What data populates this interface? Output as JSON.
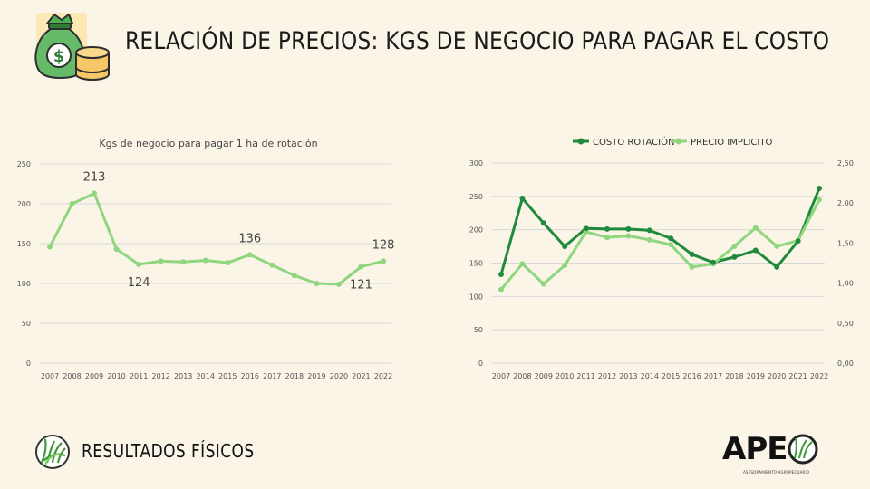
{
  "title": "RELACIÓN DE PRECIOS: KGS DE NEGOCIO PARA PAGAR EL COSTO",
  "footer": {
    "section": "RESULTADOS  FÍSICOS"
  },
  "brand": {
    "name": "APE",
    "subtitle": "ASESORAMIENTO AGROPECUARIO"
  },
  "colors": {
    "background": "#fbf5e8",
    "dark_green": "#1f8a3c",
    "light_green": "#8fd67e"
  },
  "chart_data": [
    {
      "type": "line",
      "title": "Kgs de negocio  para pagar 1 ha de rotación",
      "x": [
        "2007",
        "2008",
        "2009",
        "2010",
        "2011",
        "2012",
        "2013",
        "2014",
        "2015",
        "2016",
        "2017",
        "2018",
        "2019",
        "2020",
        "2021",
        "2022"
      ],
      "series": [
        {
          "name": "Kgs de negocio",
          "values": [
            146,
            200,
            213,
            143,
            124,
            128,
            127,
            129,
            126,
            136,
            123,
            110,
            100,
            99,
            121,
            128
          ]
        }
      ],
      "ylim": [
        0,
        250
      ],
      "yticks": [
        0,
        50,
        100,
        150,
        200,
        250
      ],
      "data_labels": [
        {
          "index": 2,
          "text": "213"
        },
        {
          "index": 4,
          "text": "124"
        },
        {
          "index": 9,
          "text": "136"
        },
        {
          "index": 14,
          "text": "121"
        },
        {
          "index": 15,
          "text": "128"
        }
      ],
      "grid": true
    },
    {
      "type": "line",
      "title": "",
      "x": [
        "2007",
        "2008",
        "2009",
        "2010",
        "2011",
        "2012",
        "2013",
        "2014",
        "2015",
        "2016",
        "2017",
        "2018",
        "2019",
        "2020",
        "2021",
        "2022"
      ],
      "legend_position": "top",
      "series": [
        {
          "name": "COSTO ROTACIÓN",
          "axis": "left",
          "values": [
            133,
            247,
            210,
            175,
            202,
            201,
            201,
            199,
            187,
            163,
            151,
            159,
            169,
            144,
            183,
            262
          ]
        },
        {
          "name": "PRECIO IMPLICITO",
          "axis": "right",
          "values": [
            0.92,
            1.24,
            0.99,
            1.22,
            1.64,
            1.57,
            1.59,
            1.54,
            1.48,
            1.2,
            1.24,
            1.46,
            1.69,
            1.46,
            1.53,
            2.04
          ]
        }
      ],
      "ylim": [
        0,
        300
      ],
      "yticks": [
        0,
        50,
        100,
        150,
        200,
        250,
        300
      ],
      "y2lim": [
        0,
        2.5
      ],
      "y2ticks": [
        "0,00",
        "0,50",
        "1,00",
        "1,50",
        "2,00",
        "2,50"
      ],
      "grid": true
    }
  ]
}
